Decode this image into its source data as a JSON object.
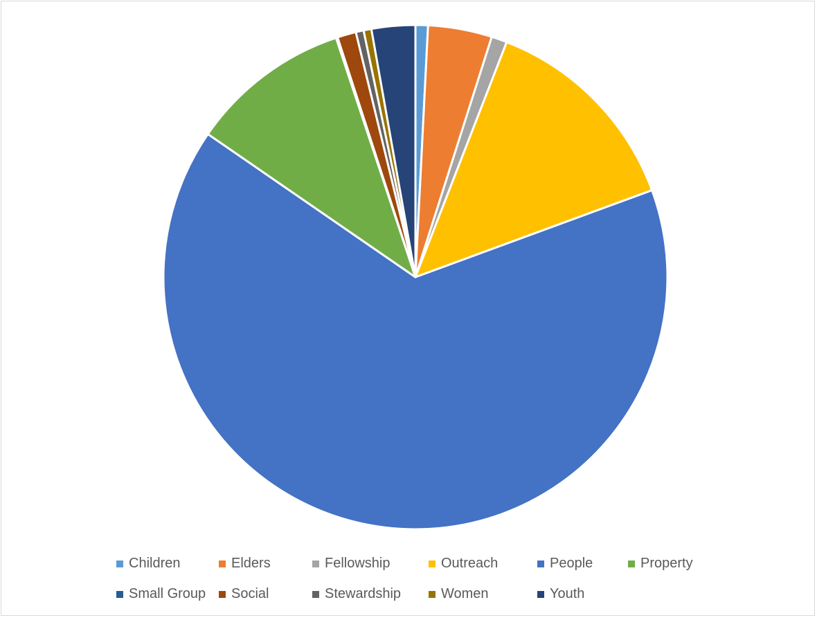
{
  "chart_data": {
    "type": "pie",
    "title": "",
    "categories": [
      "Children",
      "Elders",
      "Fellowship",
      "Outreach",
      "People",
      "Property",
      "Small Group",
      "Social",
      "Stewardship",
      "Women",
      "Youth"
    ],
    "values": [
      0.8,
      4.1,
      1.0,
      13.5,
      65.2,
      10.3,
      0.1,
      1.2,
      0.5,
      0.5,
      2.8
    ],
    "value_unit": "percent of total (estimated)",
    "colors": [
      "#5b9bd5",
      "#ed7d31",
      "#a5a5a5",
      "#ffc000",
      "#4472c4",
      "#70ad47",
      "#255e91",
      "#9e480e",
      "#636363",
      "#997300",
      "#264478"
    ],
    "legend": {
      "position": "bottom",
      "columns": 6
    }
  }
}
